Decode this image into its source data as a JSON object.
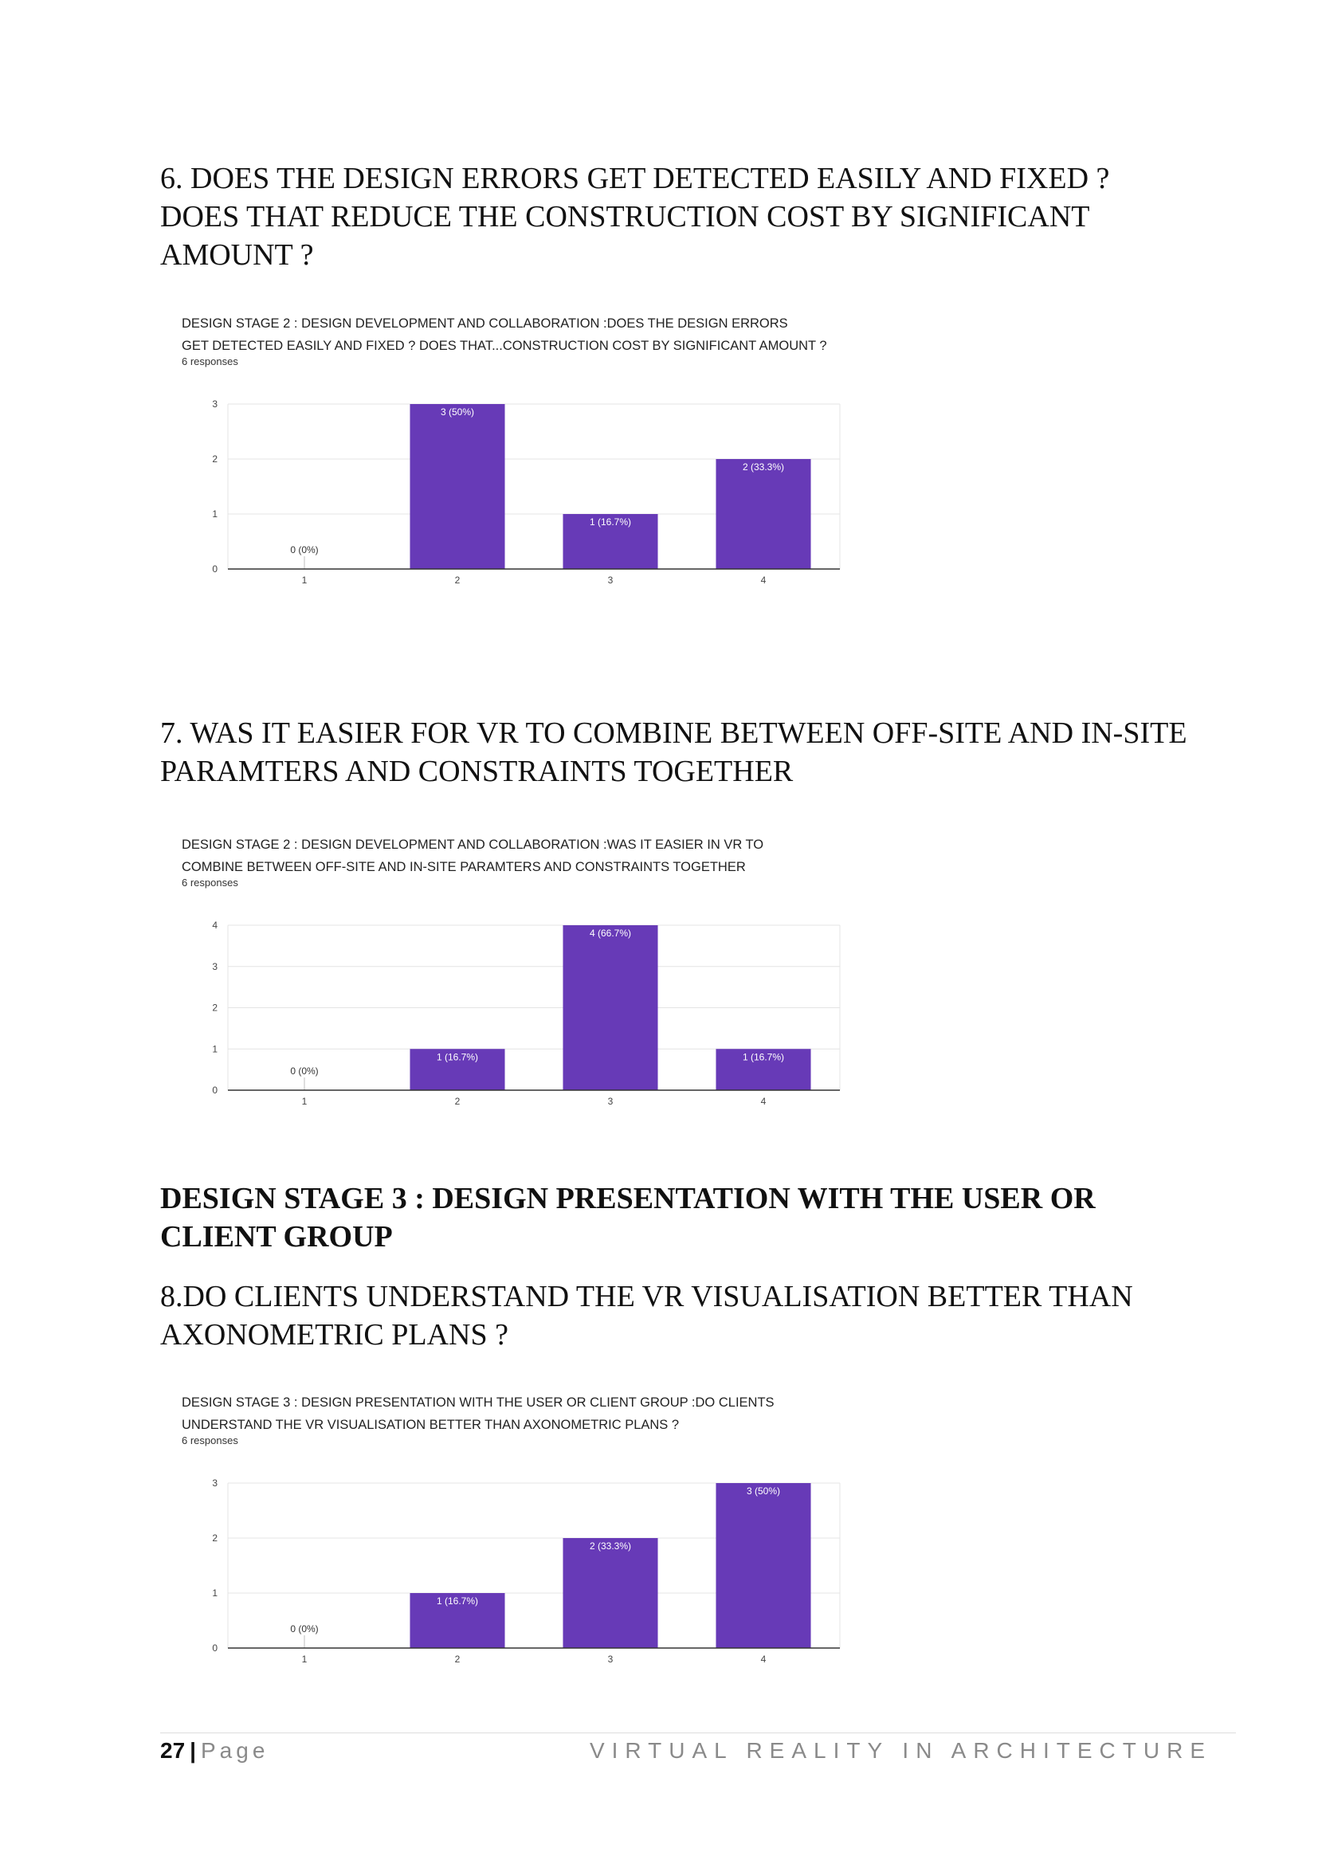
{
  "sections": [
    {
      "heading": "6. DOES THE DESIGN ERRORS GET DETECTED EASILY AND FIXED ?\nDOES THAT REDUCE THE CONSTRUCTION COST BY SIGNIFICANT\nAMOUNT ?"
    },
    {
      "heading": "7. WAS IT EASIER FOR VR TO COMBINE BETWEEN OFF-SITE AND IN-SITE\nPARAMTERS AND CONSTRAINTS TOGETHER"
    },
    {
      "stage_heading": "DESIGN STAGE 3 : DESIGN PRESENTATION WITH THE USER OR\nCLIENT GROUP",
      "heading": "8.DO CLIENTS UNDERSTAND THE VR VISUALISATION BETTER THAN\nAXONOMETRIC PLANS ?"
    }
  ],
  "bar_color": "#673ab7",
  "chart_data": [
    {
      "type": "bar",
      "title": "DESIGN STAGE 2 : DESIGN DEVELOPMENT AND COLLABORATION  :DOES THE DESIGN ERRORS\nGET DETECTED EASILY AND FIXED ? DOES THAT...CONSTRUCTION COST BY SIGNIFICANT AMOUNT ?",
      "responses": "6 responses",
      "categories": [
        "1",
        "2",
        "3",
        "4"
      ],
      "values": [
        0,
        3,
        1,
        2
      ],
      "data_labels": [
        "0 (0%)",
        "3 (50%)",
        "1 (16.7%)",
        "2 (33.3%)"
      ],
      "y_ticks": [
        "0",
        "1",
        "2",
        "3"
      ],
      "ylim": [
        0,
        3
      ],
      "grid": true
    },
    {
      "type": "bar",
      "title": "DESIGN STAGE 2 : DESIGN DEVELOPMENT AND COLLABORATION  :WAS IT EASIER IN VR TO\nCOMBINE BETWEEN OFF-SITE AND IN-SITE PARAMTERS AND CONSTRAINTS TOGETHER",
      "responses": "6 responses",
      "categories": [
        "1",
        "2",
        "3",
        "4"
      ],
      "values": [
        0,
        1,
        4,
        1
      ],
      "data_labels": [
        "0 (0%)",
        "1 (16.7%)",
        "4 (66.7%)",
        "1 (16.7%)"
      ],
      "y_ticks": [
        "0",
        "1",
        "2",
        "3",
        "4"
      ],
      "ylim": [
        0,
        4
      ],
      "grid": true
    },
    {
      "type": "bar",
      "title": "DESIGN STAGE 3 : DESIGN PRESENTATION WITH THE USER OR CLIENT GROUP :DO CLIENTS\nUNDERSTAND THE VR VISUALISATION BETTER THAN AXONOMETRIC PLANS ?",
      "responses": "6 responses",
      "categories": [
        "1",
        "2",
        "3",
        "4"
      ],
      "values": [
        0,
        1,
        2,
        3
      ],
      "data_labels": [
        "0 (0%)",
        "1 (16.7%)",
        "2 (33.3%)",
        "3 (50%)"
      ],
      "y_ticks": [
        "0",
        "1",
        "2",
        "3"
      ],
      "ylim": [
        0,
        3
      ],
      "grid": true
    }
  ],
  "footer": {
    "page_number": "27",
    "separator": "|",
    "page_label": "Page",
    "document_title": "VIRTUAL REALITY IN ARCHITECTURE"
  }
}
